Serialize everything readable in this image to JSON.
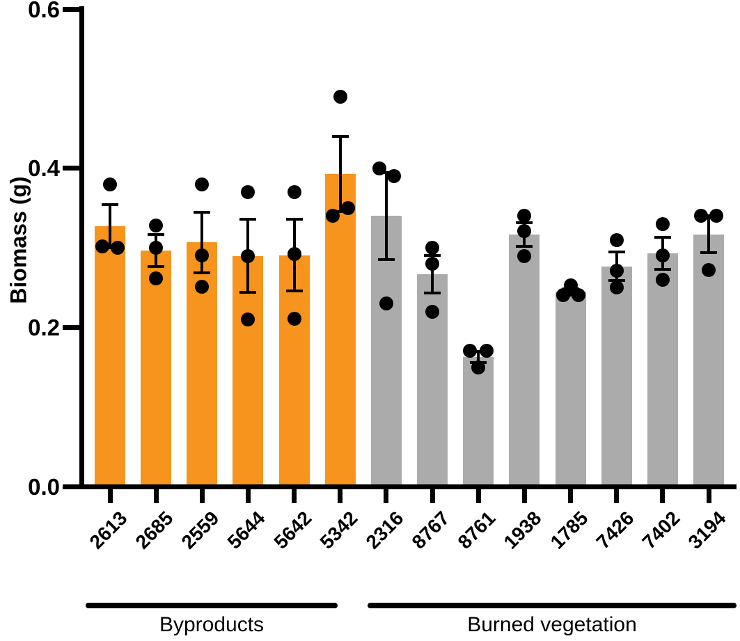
{
  "chart_data": {
    "type": "bar",
    "title": "",
    "ylabel": "Biomass (g)",
    "xlabel": "",
    "ylim": [
      0.0,
      0.6
    ],
    "yticks": [
      "0.0",
      "0.2",
      "0.4",
      "0.6"
    ],
    "grid": false,
    "legend_position": "none",
    "error_bar_type": "SEM",
    "axis_color": "#000000",
    "point_color": "#000000",
    "groups": [
      {
        "label": "Byproducts",
        "color": "#F7941E",
        "categories": [
          "2613",
          "2685",
          "2559",
          "5644",
          "5642",
          "5342"
        ]
      },
      {
        "label": "Burned vegetation",
        "color": "#ABABAB",
        "categories": [
          "2316",
          "8767",
          "8761",
          "1938",
          "1785",
          "7426",
          "7402",
          "3194"
        ]
      }
    ],
    "categories": [
      "2613",
      "2685",
      "2559",
      "5644",
      "5642",
      "5342",
      "2316",
      "8767",
      "8761",
      "1938",
      "1785",
      "7426",
      "7402",
      "3194"
    ],
    "bars": [
      {
        "category": "2613",
        "group": "Byproducts",
        "mean": 0.327,
        "sem": 0.027,
        "points": [
          0.38,
          0.302,
          0.3
        ],
        "point_dx": [
          0,
          -11,
          11
        ]
      },
      {
        "category": "2685",
        "group": "Byproducts",
        "mean": 0.297,
        "sem": 0.02,
        "points": [
          0.328,
          0.3,
          0.262
        ],
        "point_dx": [
          0,
          0,
          0
        ]
      },
      {
        "category": "2559",
        "group": "Byproducts",
        "mean": 0.307,
        "sem": 0.038,
        "points": [
          0.38,
          0.291,
          0.251
        ],
        "point_dx": [
          0,
          0,
          0
        ]
      },
      {
        "category": "5644",
        "group": "Byproducts",
        "mean": 0.29,
        "sem": 0.046,
        "points": [
          0.37,
          0.29,
          0.21
        ],
        "point_dx": [
          0,
          0,
          0
        ]
      },
      {
        "category": "5642",
        "group": "Byproducts",
        "mean": 0.291,
        "sem": 0.045,
        "points": [
          0.37,
          0.292,
          0.211
        ],
        "point_dx": [
          0,
          0,
          0
        ]
      },
      {
        "category": "5342",
        "group": "Byproducts",
        "mean": 0.393,
        "sem": 0.047,
        "points": [
          0.49,
          0.35,
          0.34
        ],
        "point_dx": [
          0,
          11,
          -11
        ]
      },
      {
        "category": "2316",
        "group": "Burned vegetation",
        "mean": 0.34,
        "sem": 0.055,
        "points": [
          0.4,
          0.39,
          0.23
        ],
        "point_dx": [
          -10,
          11,
          0
        ]
      },
      {
        "category": "8767",
        "group": "Burned vegetation",
        "mean": 0.267,
        "sem": 0.024,
        "points": [
          0.3,
          0.28,
          0.22
        ],
        "point_dx": [
          0,
          0,
          0
        ]
      },
      {
        "category": "8761",
        "group": "Burned vegetation",
        "mean": 0.163,
        "sem": 0.007,
        "points": [
          0.171,
          0.171,
          0.15
        ],
        "point_dx": [
          -12,
          12,
          0
        ]
      },
      {
        "category": "1938",
        "group": "Burned vegetation",
        "mean": 0.317,
        "sem": 0.015,
        "points": [
          0.34,
          0.321,
          0.29
        ],
        "point_dx": [
          0,
          0,
          0
        ]
      },
      {
        "category": "1785",
        "group": "Burned vegetation",
        "mean": 0.245,
        "sem": 0.004,
        "points": [
          0.253,
          0.241,
          0.241
        ],
        "point_dx": [
          0,
          -11,
          11
        ]
      },
      {
        "category": "7426",
        "group": "Burned vegetation",
        "mean": 0.277,
        "sem": 0.018,
        "points": [
          0.31,
          0.271,
          0.25
        ],
        "point_dx": [
          0,
          0,
          0
        ]
      },
      {
        "category": "7402",
        "group": "Burned vegetation",
        "mean": 0.293,
        "sem": 0.02,
        "points": [
          0.33,
          0.291,
          0.26
        ],
        "point_dx": [
          0,
          0,
          0
        ]
      },
      {
        "category": "3194",
        "group": "Burned vegetation",
        "mean": 0.317,
        "sem": 0.023,
        "points": [
          0.34,
          0.34,
          0.272
        ],
        "point_dx": [
          -11,
          11,
          0
        ]
      }
    ]
  }
}
